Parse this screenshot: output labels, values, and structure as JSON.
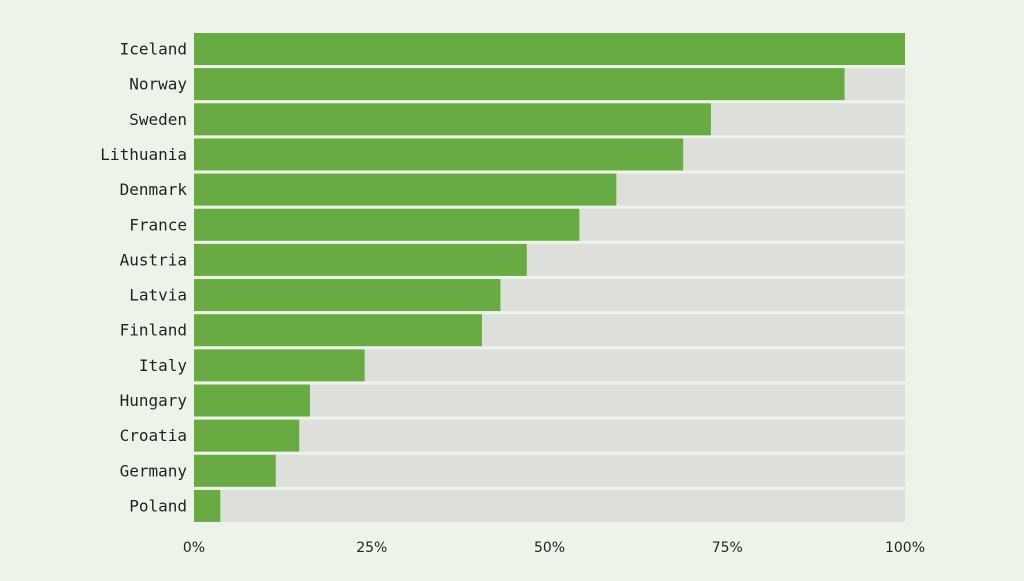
{
  "colors": {
    "background": "#eef3ea",
    "bar": "#67ab42",
    "track": "#dde0da",
    "text": "#1f2320"
  },
  "chart_data": {
    "type": "bar",
    "orientation": "horizontal",
    "stacked_against_full_track": true,
    "categories": [
      "Iceland",
      "Norway",
      "Sweden",
      "Lithuania",
      "Denmark",
      "France",
      "Austria",
      "Latvia",
      "Finland",
      "Italy",
      "Hungary",
      "Croatia",
      "Germany",
      "Poland"
    ],
    "values": [
      100,
      91.5,
      72.7,
      68.8,
      59.4,
      54.2,
      46.8,
      43.1,
      40.5,
      24.0,
      16.3,
      14.8,
      11.5,
      3.7
    ],
    "xlim": [
      0,
      100
    ],
    "xticks": [
      0,
      25,
      50,
      75,
      100
    ],
    "xtick_labels": [
      "0%",
      "25%",
      "50%",
      "75%",
      "100%"
    ],
    "title": "",
    "xlabel": "",
    "ylabel": "",
    "grid": false,
    "legend": "none"
  }
}
